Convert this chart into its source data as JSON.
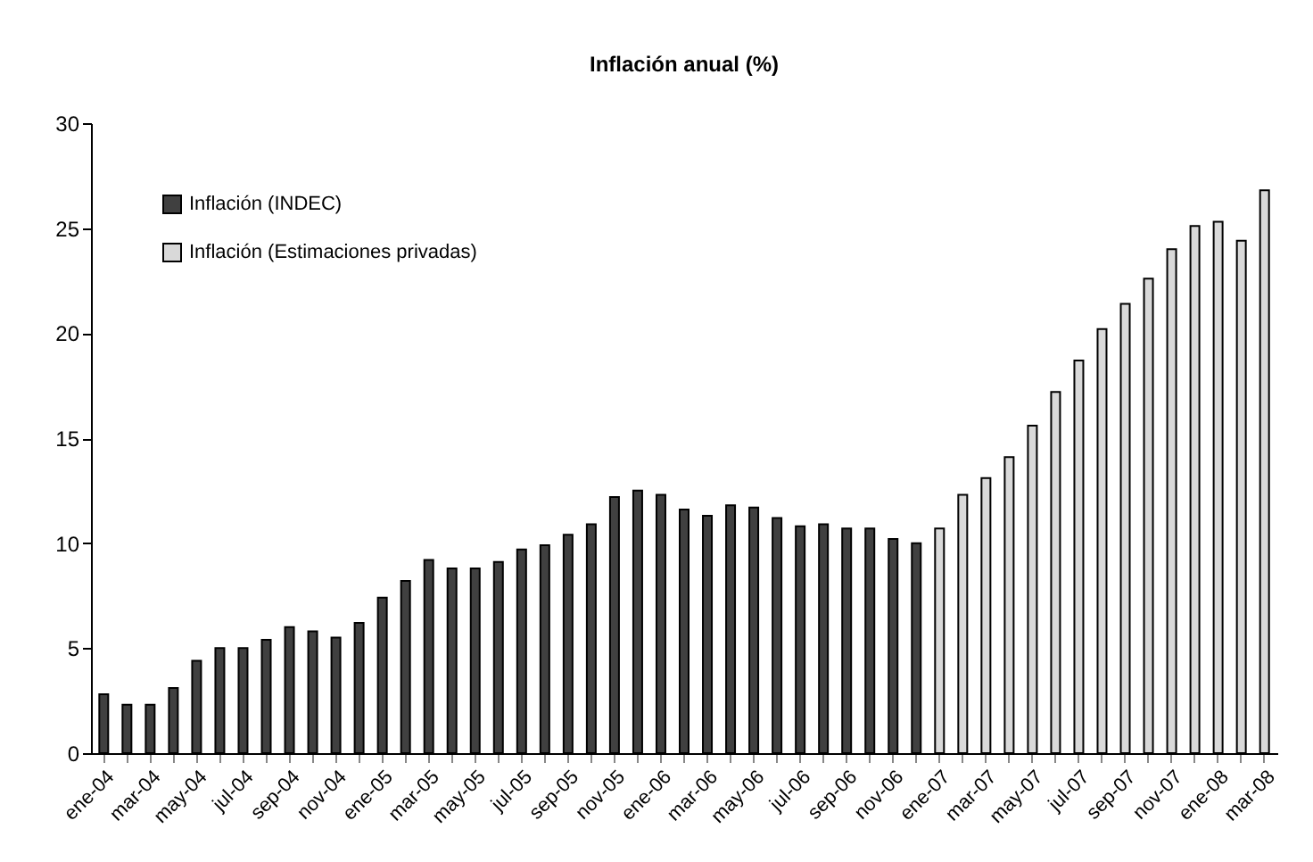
{
  "chart_data": {
    "type": "bar",
    "title": "Inflación anual (%)",
    "categories": [
      "ene-04",
      null,
      "mar-04",
      null,
      "may-04",
      null,
      "jul-04",
      null,
      "sep-04",
      null,
      "nov-04",
      null,
      "ene-05",
      null,
      "mar-05",
      null,
      "may-05",
      null,
      "jul-05",
      null,
      "sep-05",
      null,
      "nov-05",
      null,
      "ene-06",
      null,
      "mar-06",
      null,
      "may-06",
      null,
      "jul-06",
      null,
      "sep-06",
      null,
      "nov-06",
      null,
      "ene-07",
      null,
      "mar-07",
      null,
      "may-07",
      null,
      "jul-07",
      null,
      "sep-07",
      null,
      "nov-07",
      null,
      "ene-08",
      null,
      "mar-08"
    ],
    "series": [
      {
        "name": "Inflación (INDEC)",
        "color": "#404040",
        "values": [
          2.8,
          2.3,
          2.3,
          3.1,
          4.4,
          5.0,
          5.0,
          5.4,
          6.0,
          5.8,
          5.5,
          6.2,
          7.4,
          8.2,
          9.2,
          8.8,
          8.8,
          9.1,
          9.7,
          9.9,
          10.4,
          10.9,
          12.2,
          12.5,
          12.3,
          11.6,
          11.3,
          11.8,
          11.7,
          11.2,
          10.8,
          10.9,
          10.7,
          10.7,
          10.2,
          10.0,
          null,
          null,
          null,
          null,
          null,
          null,
          null,
          null,
          null,
          null,
          null,
          null,
          null,
          null,
          null
        ]
      },
      {
        "name": "Inflación (Estimaciones privadas)",
        "color": "#d9d9d9",
        "values": [
          null,
          null,
          null,
          null,
          null,
          null,
          null,
          null,
          null,
          null,
          null,
          null,
          null,
          null,
          null,
          null,
          null,
          null,
          null,
          null,
          null,
          null,
          null,
          null,
          null,
          null,
          null,
          null,
          null,
          null,
          null,
          null,
          null,
          null,
          null,
          null,
          10.7,
          12.3,
          13.1,
          14.1,
          15.6,
          17.2,
          18.7,
          20.2,
          21.4,
          22.6,
          24.0,
          25.1,
          25.3,
          24.4,
          26.8
        ]
      }
    ],
    "ylim": [
      0,
      30
    ],
    "yticks": [
      0,
      5,
      10,
      15,
      20,
      25,
      30
    ],
    "grid": false,
    "legend": "top left"
  }
}
